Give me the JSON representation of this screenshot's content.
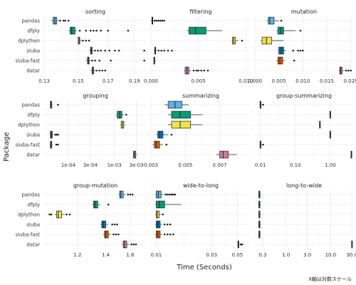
{
  "chart_data": {
    "type": "boxplot",
    "y_axis_title": "Package",
    "x_axis_title": "Time (Seconds)",
    "caption": "X軸は対数スケール",
    "x_scale": "log",
    "categories": [
      "pandas",
      "dfply",
      "dplython",
      "siuba",
      "siuba-fast",
      "datar"
    ],
    "colors": {
      "pandas": "#56B4E9",
      "dfply": "#009E73",
      "dplython": "#F0E442",
      "siuba": "#0072B2",
      "siuba-fast": "#D55E00",
      "datar": "#CC79A7"
    },
    "facets": [
      {
        "title": "sorting",
        "xlim": [
          0.13,
          0.2
        ],
        "ticks": [
          0.13,
          0.15,
          0.17,
          0.19
        ],
        "tick_labels": [
          "0.13",
          "0.15",
          "0.17",
          "0.19"
        ],
        "data": {
          "pandas": {
            "whisker": [
              0.134,
              0.138
            ],
            "box": [
              0.135,
              0.137
            ],
            "median": 0.136,
            "outliers": [
              0.139,
              0.141,
              0.142,
              0.144
            ]
          },
          "dfply": {
            "whisker": [
              0.144,
              0.149
            ],
            "box": [
              0.145,
              0.148
            ],
            "median": 0.146,
            "outliers": [
              0.151,
              0.155,
              0.158,
              0.16,
              0.162,
              0.165,
              0.17,
              0.185
            ]
          },
          "dplython": {
            "whisker": [
              0.15,
              0.152
            ],
            "box": [
              0.15,
              0.151
            ],
            "median": 0.1505,
            "outliers": [
              0.153,
              0.155,
              0.157
            ]
          },
          "siuba": {
            "whisker": [
              0.157,
              0.16
            ],
            "box": [
              0.158,
              0.159
            ],
            "median": 0.1585,
            "outliers": [
              0.161,
              0.163,
              0.165,
              0.168,
              0.171,
              0.175,
              0.178,
              0.198
            ]
          },
          "siuba-fast": {
            "whisker": [
              0.155,
              0.158
            ],
            "box": [
              0.156,
              0.157
            ],
            "median": 0.1565,
            "outliers": [
              0.159,
              0.161,
              0.164,
              0.172,
              0.198
            ]
          },
          "datar": {
            "whisker": [
              0.158,
              0.161
            ],
            "box": [
              0.159,
              0.16
            ],
            "median": 0.1595,
            "outliers": [
              0.162,
              0.164,
              0.166,
              0.168
            ]
          }
        }
      },
      {
        "title": "filtering",
        "xlim": [
          0.0,
          0.0105
        ],
        "ticks": [
          0.0,
          0.005,
          0.01
        ],
        "tick_labels": [
          "0.000",
          "0.005",
          "0.010"
        ],
        "linear": true,
        "data": {
          "pandas": {
            "whisker": [
              0.0,
              0.0003
            ],
            "box": [
              0.0001,
              0.0002
            ],
            "median": 0.00015,
            "outliers": [
              0.0004,
              0.0006,
              0.0008,
              0.001,
              0.0012,
              0.0014
            ]
          },
          "dfply": {
            "whisker": [
              0.0038,
              0.0075
            ],
            "box": [
              0.004,
              0.0058
            ],
            "median": 0.0047,
            "outliers": []
          },
          "dplython": {
            "whisker": [
              0.0085,
              0.0092
            ],
            "box": [
              0.0086,
              0.0089
            ],
            "median": 0.0087,
            "outliers": [
              0.0096
            ]
          },
          "siuba": {
            "whisker": [
              0.0003,
              0.0006
            ],
            "box": [
              0.0004,
              0.0005
            ],
            "median": 0.00045,
            "outliers": [
              0.0008,
              0.0011,
              0.0014,
              0.0018,
              0.0022
            ]
          },
          "siuba-fast": {
            "whisker": [
              0.0003,
              0.0005
            ],
            "box": [
              0.0003,
              0.0004
            ],
            "median": 0.00035,
            "outliers": []
          },
          "datar": {
            "whisker": [
              0.0035,
              0.0042
            ],
            "box": [
              0.0036,
              0.004
            ],
            "median": 0.0038,
            "outliers": [
              0.0045,
              0.0048,
              0.005,
              0.0053,
              0.0056,
              0.006
            ]
          }
        }
      },
      {
        "title": "mutation",
        "xlim": [
          0.0,
          0.0205
        ],
        "ticks": [
          0.0,
          0.005,
          0.01,
          0.015,
          0.02
        ],
        "tick_labels": [
          "0.000",
          "0.005",
          "0.010",
          "0.015",
          "0.020"
        ],
        "linear": true,
        "data": {
          "pandas": {
            "whisker": [
              0.0025,
              0.005
            ],
            "box": [
              0.0028,
              0.004
            ],
            "median": 0.0031,
            "outliers": [
              0.0055
            ]
          },
          "dfply": {
            "whisker": [
              0.0045,
              0.0085
            ],
            "box": [
              0.0048,
              0.006
            ],
            "median": 0.0054,
            "outliers": [
              0.0095
            ]
          },
          "dplython": {
            "whisker": [
              0.0012,
              0.006
            ],
            "box": [
              0.0015,
              0.0035
            ],
            "median": 0.0024,
            "outliers": []
          },
          "siuba": {
            "whisker": [
              0.0048,
              0.0065
            ],
            "box": [
              0.005,
              0.006
            ],
            "median": 0.0055,
            "outliers": [
              0.008,
              0.009,
              0.0095,
              0.01
            ]
          },
          "siuba-fast": {
            "whisker": [
              0.0045,
              0.0062
            ],
            "box": [
              0.0048,
              0.0058
            ],
            "median": 0.0052,
            "outliers": [
              0.0082
            ]
          },
          "datar": {
            "whisker": [
              0.0175,
              0.0185
            ],
            "box": [
              0.0177,
              0.0182
            ],
            "median": 0.0179,
            "outliers": [
              0.019,
              0.0195,
              0.02
            ]
          }
        }
      },
      {
        "title": "grouping",
        "xlim": [
          3e-05,
          0.005
        ],
        "ticks": [
          0.0001,
          0.0003,
          0.001,
          0.003
        ],
        "tick_labels": [
          "1e-04",
          "3e-04",
          "1e-03",
          "3e-03"
        ],
        "data": {
          "pandas": {
            "whisker": [
              4e-05,
              4.6e-05
            ],
            "box": [
              4.1e-05,
              4.4e-05
            ],
            "median": 4.2e-05,
            "outliers": [
              6e-05
            ]
          },
          "dfply": {
            "whisker": [
              0.0011,
              0.0016
            ],
            "box": [
              0.00115,
              0.00145
            ],
            "median": 0.0013,
            "outliers": [
              0.0018
            ]
          },
          "dplython": {
            "whisker": [
              0.00135,
              0.0017
            ],
            "box": [
              0.0014,
              0.0016
            ],
            "median": 0.0015,
            "outliers": []
          },
          "siuba": {
            "whisker": [
              4e-05,
              4.7e-05
            ],
            "box": [
              4.1e-05,
              4.5e-05
            ],
            "median": 4.3e-05,
            "outliers": [
              5.2e-05,
              5.6e-05,
              6e-05
            ]
          },
          "siuba-fast": {
            "whisker": [
              4e-05,
              4.6e-05
            ],
            "box": [
              4.1e-05,
              4.4e-05
            ],
            "median": 4.2e-05,
            "outliers": [
              5.5e-05,
              6e-05
            ]
          },
          "datar": {
            "whisker": [
              0.0025,
              0.0031
            ],
            "box": [
              0.0026,
              0.0029
            ],
            "median": 0.0027,
            "outliers": []
          }
        }
      },
      {
        "title": "summarizing",
        "xlim": [
          0.003,
          0.0088
        ],
        "ticks": [
          0.003,
          0.005,
          0.007
        ],
        "tick_labels": [
          "0.003",
          "0.005",
          "0.007"
        ],
        "linear": true,
        "data": {
          "pandas": {
            "whisker": [
              0.0038,
              0.0052
            ],
            "box": [
              0.004,
              0.0048
            ],
            "median": 0.0044,
            "outliers": []
          },
          "dfply": {
            "whisker": [
              0.004,
              0.006
            ],
            "box": [
              0.0042,
              0.0053
            ],
            "median": 0.0047,
            "outliers": []
          },
          "dplython": {
            "whisker": [
              0.004,
              0.006
            ],
            "box": [
              0.0042,
              0.0053
            ],
            "median": 0.0047,
            "outliers": []
          },
          "siuba": {
            "whisker": [
              0.0033,
              0.004
            ],
            "box": [
              0.0034,
              0.0037
            ],
            "median": 0.0035,
            "outliers": [
              0.0042
            ]
          },
          "siuba-fast": {
            "whisker": [
              0.0031,
              0.0037
            ],
            "box": [
              0.0032,
              0.0035
            ],
            "median": 0.0033,
            "outliers": [
              0.0039
            ]
          },
          "datar": {
            "whisker": [
              0.0068,
              0.008
            ],
            "box": [
              0.007,
              0.0075
            ],
            "median": 0.0072,
            "outliers": []
          }
        }
      },
      {
        "title": "group-summarizing",
        "xlim": [
          0.007,
          4.5
        ],
        "ticks": [
          0.01,
          0.1,
          1.0
        ],
        "tick_labels": [
          "0.01",
          "0.10",
          "1.00"
        ],
        "data": {
          "pandas": {
            "whisker": [
              0.0095,
              0.011
            ],
            "box": [
              0.0098,
              0.0105
            ],
            "median": 0.01,
            "outliers": [
              0.012
            ]
          },
          "dfply": {
            "whisker": [
              0.95,
              1.05
            ],
            "box": [
              0.97,
              1.02
            ],
            "median": 1.0,
            "outliers": []
          },
          "dplython": {
            "whisker": [
              0.48,
              0.53
            ],
            "box": [
              0.49,
              0.52
            ],
            "median": 0.5,
            "outliers": []
          },
          "siuba": {
            "whisker": [
              0.95,
              1.05
            ],
            "box": [
              0.97,
              1.02
            ],
            "median": 1.0,
            "outliers": []
          },
          "siuba-fast": {
            "whisker": [
              0.0095,
              0.011
            ],
            "box": [
              0.0098,
              0.0105
            ],
            "median": 0.01,
            "outliers": [
              0.012
            ]
          },
          "datar": {
            "whisker": [
              3.8,
              4.2
            ],
            "box": [
              3.9,
              4.1
            ],
            "median": 4.0,
            "outliers": []
          }
        }
      },
      {
        "title": "group-mutation",
        "xlim": [
          1.0,
          1.75
        ],
        "ticks": [
          1.2,
          1.4,
          1.6
        ],
        "tick_labels": [
          "1.2",
          "1.4",
          "1.6"
        ],
        "data": {
          "pandas": {
            "whisker": [
              1.5,
              1.56
            ],
            "box": [
              1.51,
              1.54
            ],
            "median": 1.52,
            "outliers": [
              1.58,
              1.6,
              1.62
            ]
          },
          "dfply": {
            "whisker": [
              1.3,
              1.36
            ],
            "box": [
              1.31,
              1.34
            ],
            "median": 1.32,
            "outliers": [
              1.42
            ]
          },
          "dplython": {
            "whisker": [
              1.06,
              1.12
            ],
            "box": [
              1.07,
              1.1
            ],
            "median": 1.08,
            "outliers": [
              1.03,
              1.04,
              1.13,
              1.15
            ]
          },
          "siuba": {
            "whisker": [
              1.36,
              1.42
            ],
            "box": [
              1.37,
              1.4
            ],
            "median": 1.38,
            "outliers": [
              1.45,
              1.47,
              1.49
            ]
          },
          "siuba-fast": {
            "whisker": [
              1.38,
              1.44
            ],
            "box": [
              1.39,
              1.42
            ],
            "median": 1.4,
            "outliers": [
              1.46,
              1.48,
              1.5
            ]
          },
          "datar": {
            "whisker": [
              1.53,
              1.59
            ],
            "box": [
              1.54,
              1.57
            ],
            "median": 1.55,
            "outliers": [
              1.61,
              1.63,
              1.65
            ]
          }
        }
      },
      {
        "title": "wide-to-long",
        "xlim": [
          0.009,
          0.065
        ],
        "ticks": [
          0.01,
          0.03,
          0.05
        ],
        "tick_labels": [
          "0.01",
          "0.03",
          "0.05"
        ],
        "data": {
          "pandas": {
            "whisker": [
              0.0098,
              0.0115
            ],
            "box": [
              0.01,
              0.011
            ],
            "median": 0.0104,
            "outliers": [
              0.012,
              0.0125,
              0.013,
              0.0135,
              0.014,
              0.0145
            ]
          },
          "dfply": {
            "whisker": [
              0.0098,
              0.0165
            ],
            "box": [
              0.01,
              0.0118
            ],
            "median": 0.0106,
            "outliers": []
          },
          "dplython": {
            "whisker": [
              0.0098,
              0.011
            ],
            "box": [
              0.01,
              0.0106
            ],
            "median": 0.0102,
            "outliers": [
              0.0114
            ]
          },
          "siuba": {
            "whisker": [
              0.0098,
              0.0112
            ],
            "box": [
              0.01,
              0.0108
            ],
            "median": 0.0103,
            "outliers": [
              0.0118,
              0.0125,
              0.0132
            ]
          },
          "siuba-fast": {
            "whisker": [
              0.0098,
              0.0112
            ],
            "box": [
              0.01,
              0.0108
            ],
            "median": 0.0103,
            "outliers": [
              0.0118,
              0.0125,
              0.0132,
              0.014
            ]
          },
          "datar": {
            "whisker": [
              0.05,
              0.052
            ],
            "box": [
              0.0505,
              0.0515
            ],
            "median": 0.051,
            "outliers": [
              0.0535,
              0.055
            ]
          }
        }
      },
      {
        "title": "long-to-wide",
        "xlim": [
          0.2,
          32.0
        ],
        "ticks": [
          0.3,
          1.0,
          3.0,
          10.0,
          30.0
        ],
        "tick_labels": [
          "0.3",
          "1.0",
          "3.0",
          "10.0",
          "30.0"
        ],
        "data": {
          "pandas": {
            "whisker": [
              0.24,
              0.27
            ],
            "box": [
              0.245,
              0.26
            ],
            "median": 0.25,
            "outliers": []
          },
          "dfply": {
            "whisker": [
              0.24,
              0.27
            ],
            "box": [
              0.245,
              0.26
            ],
            "median": 0.25,
            "outliers": []
          },
          "dplython": {
            "whisker": [
              0.24,
              0.27
            ],
            "box": [
              0.245,
              0.26
            ],
            "median": 0.25,
            "outliers": []
          },
          "siuba": {
            "whisker": [
              0.24,
              0.27
            ],
            "box": [
              0.245,
              0.26
            ],
            "median": 0.25,
            "outliers": []
          },
          "siuba-fast": {
            "whisker": [
              0.24,
              0.27
            ],
            "box": [
              0.245,
              0.26
            ],
            "median": 0.25,
            "outliers": []
          },
          "datar": {
            "whisker": [
              29.0,
              31.0
            ],
            "box": [
              29.5,
              30.5
            ],
            "median": 30.0,
            "outliers": []
          }
        }
      }
    ]
  }
}
